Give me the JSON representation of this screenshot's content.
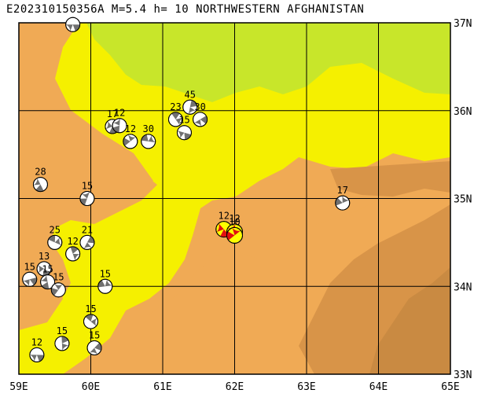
{
  "header": {
    "title": "E20231015035​6A  M=5.4  h= 10  NORTHWESTERN AFGHANISTAN"
  },
  "axes": {
    "lon_labels": [
      "59E",
      "60E",
      "61E",
      "62E",
      "63E",
      "64E",
      "65E"
    ],
    "lat_labels": [
      "37N",
      "36N",
      "35N",
      "34N",
      "33N"
    ],
    "lon_range": [
      59,
      65
    ],
    "lat_range": [
      33,
      37
    ]
  },
  "colors": {
    "lowland_yellow": "#f5f000",
    "plain_green": "#c8e62a",
    "upland_orange": "#f0aa55",
    "mountain_brown": "#d89448",
    "high_brown": "#c98a42",
    "grid": "#000000",
    "event_red": "#e01010",
    "event_yellow": "#ffff00",
    "mech_gray": "#707070"
  },
  "events": [
    {
      "lon": 59.75,
      "lat": 36.98,
      "depth": "",
      "main": false
    },
    {
      "lon": 60.3,
      "lat": 35.82,
      "depth": "17",
      "main": false
    },
    {
      "lon": 60.4,
      "lat": 35.83,
      "depth": "12",
      "main": false
    },
    {
      "lon": 60.55,
      "lat": 35.65,
      "depth": "12",
      "main": false
    },
    {
      "lon": 60.8,
      "lat": 35.65,
      "depth": "30",
      "main": false
    },
    {
      "lon": 61.18,
      "lat": 35.9,
      "depth": "23",
      "main": false
    },
    {
      "lon": 61.38,
      "lat": 36.04,
      "depth": "45",
      "main": false
    },
    {
      "lon": 61.52,
      "lat": 35.9,
      "depth": "30",
      "main": false
    },
    {
      "lon": 61.3,
      "lat": 35.75,
      "depth": "15",
      "main": false
    },
    {
      "lon": 59.3,
      "lat": 35.16,
      "depth": "28",
      "main": false
    },
    {
      "lon": 59.95,
      "lat": 35.0,
      "depth": "15",
      "main": false
    },
    {
      "lon": 63.5,
      "lat": 34.95,
      "depth": "17",
      "main": false
    },
    {
      "lon": 59.5,
      "lat": 34.5,
      "depth": "25",
      "main": false
    },
    {
      "lon": 59.75,
      "lat": 34.37,
      "depth": "12",
      "main": false
    },
    {
      "lon": 59.95,
      "lat": 34.5,
      "depth": "21",
      "main": false
    },
    {
      "lon": 59.15,
      "lat": 34.08,
      "depth": "15",
      "main": false
    },
    {
      "lon": 59.35,
      "lat": 34.2,
      "depth": "13",
      "main": false
    },
    {
      "lon": 59.4,
      "lat": 34.05,
      "depth": "15",
      "main": false
    },
    {
      "lon": 59.55,
      "lat": 33.96,
      "depth": "15",
      "main": false
    },
    {
      "lon": 60.2,
      "lat": 34.0,
      "depth": "15",
      "main": false
    },
    {
      "lon": 60.0,
      "lat": 33.6,
      "depth": "15",
      "main": false
    },
    {
      "lon": 59.6,
      "lat": 33.35,
      "depth": "15",
      "main": false
    },
    {
      "lon": 60.05,
      "lat": 33.3,
      "depth": "15",
      "main": false
    },
    {
      "lon": 59.25,
      "lat": 33.22,
      "depth": "12",
      "main": false
    },
    {
      "lon": 61.85,
      "lat": 34.65,
      "depth": "12",
      "main": true
    },
    {
      "lon": 62.0,
      "lat": 34.62,
      "depth": "12",
      "main": true
    },
    {
      "lon": 62.0,
      "lat": 34.58,
      "depth": "10",
      "main": true
    }
  ]
}
